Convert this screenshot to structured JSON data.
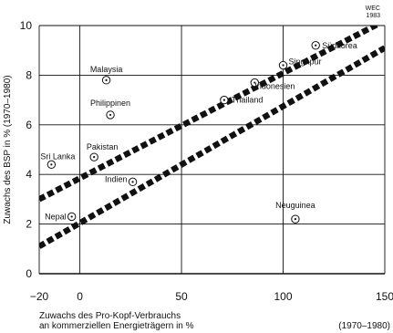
{
  "source_mark": [
    "WEC",
    "1983"
  ],
  "chart_data": {
    "type": "scatter",
    "xlabel_lines": [
      "Zuwachs des Pro-Kopf-Verbrauchs",
      "an kommerziellen Energieträgern in %"
    ],
    "x_period": "(1970–1980)",
    "ylabel": "Zuwachs des BSP in %  (1970–1980)",
    "xlim": [
      -20,
      150
    ],
    "ylim": [
      0,
      10
    ],
    "xticks": [
      -20,
      0,
      50,
      100,
      150
    ],
    "yticks": [
      0,
      2,
      4,
      6,
      8,
      10
    ],
    "grid": true,
    "points": [
      {
        "label": "Malaysia",
        "x": 13,
        "y": 7.8
      },
      {
        "label": "Philippinen",
        "x": 15,
        "y": 6.4
      },
      {
        "label": "Sri Lanka",
        "x": -14,
        "y": 4.4
      },
      {
        "label": "Pakistan",
        "x": 7,
        "y": 4.7
      },
      {
        "label": "Indien",
        "x": 26,
        "y": 3.7
      },
      {
        "label": "Nepal",
        "x": -4,
        "y": 2.3
      },
      {
        "label": "Thailand",
        "x": 71,
        "y": 7.0
      },
      {
        "label": "Indonesien",
        "x": 86,
        "y": 7.7
      },
      {
        "label": "Singapur",
        "x": 100,
        "y": 8.4
      },
      {
        "label": "Südkorea",
        "x": 116,
        "y": 9.2
      },
      {
        "label": "Neuguinea",
        "x": 106,
        "y": 2.2
      }
    ],
    "band_lines": [
      {
        "x": [
          -20,
          150
        ],
        "y": [
          3.0,
          10.2
        ]
      },
      {
        "x": [
          -20,
          150
        ],
        "y": [
          1.1,
          9.1
        ]
      }
    ]
  }
}
